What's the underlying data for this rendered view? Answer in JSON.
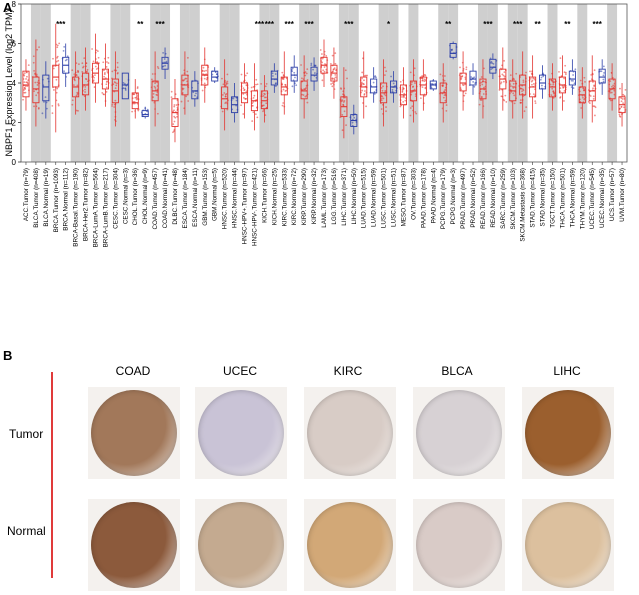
{
  "panel_a": {
    "letter": "A",
    "chart_data": {
      "type": "box",
      "title": "",
      "ylabel": "NBPF1 Expression Level (log2 TPM)",
      "ylim": [
        0,
        8
      ],
      "yticks": [
        "0",
        "2",
        "4",
        "6",
        "8"
      ],
      "colors": {
        "tumor": "#e3342f",
        "normal": "#2c3fa8",
        "shade": "#cfcfcf"
      },
      "categories": [
        {
          "label": "ACC.Tumor (n=79)",
          "group": "tumor",
          "median": 3.9,
          "q1": 3.3,
          "q3": 4.6,
          "lo": 2.6,
          "hi": 5.2,
          "sig": "",
          "shade": false
        },
        {
          "label": "BLCA.Tumor (n=408)",
          "group": "tumor",
          "median": 3.7,
          "q1": 3.0,
          "q3": 4.3,
          "lo": 1.8,
          "hi": 6.2,
          "sig": "",
          "shade": true
        },
        {
          "label": "BLCA.Normal (n=19)",
          "group": "normal",
          "median": 3.8,
          "q1": 3.1,
          "q3": 4.4,
          "lo": 2.2,
          "hi": 5.1,
          "sig": "",
          "shade": true
        },
        {
          "label": "BRCA.Tumor (n=1093)",
          "group": "tumor",
          "median": 4.3,
          "q1": 3.8,
          "q3": 4.9,
          "lo": 1.5,
          "hi": 7.0,
          "sig": "***",
          "shade": false
        },
        {
          "label": "BRCA.Normal (n=112)",
          "group": "normal",
          "median": 4.9,
          "q1": 4.5,
          "q3": 5.3,
          "lo": 3.8,
          "hi": 6.0,
          "sig": "",
          "shade": false
        },
        {
          "label": "BRCA-Basal.Tumor (n=190)",
          "group": "tumor",
          "median": 3.8,
          "q1": 3.3,
          "q3": 4.3,
          "lo": 2.4,
          "hi": 5.6,
          "sig": "",
          "shade": true
        },
        {
          "label": "BRCA-Her2.Tumor (n=82)",
          "group": "tumor",
          "median": 3.9,
          "q1": 3.4,
          "q3": 4.5,
          "lo": 2.6,
          "hi": 5.8,
          "sig": "",
          "shade": true
        },
        {
          "label": "BRCA-LumA.Tumor (n=564)",
          "group": "tumor",
          "median": 4.5,
          "q1": 4.0,
          "q3": 5.0,
          "lo": 3.0,
          "hi": 6.5,
          "sig": "",
          "shade": false
        },
        {
          "label": "BRCA-LumB.Tumor (n=217)",
          "group": "tumor",
          "median": 4.2,
          "q1": 3.7,
          "q3": 4.7,
          "lo": 2.8,
          "hi": 6.0,
          "sig": "",
          "shade": false
        },
        {
          "label": "CESC.Tumor (n=304)",
          "group": "tumor",
          "median": 3.6,
          "q1": 3.0,
          "q3": 4.2,
          "lo": 1.8,
          "hi": 5.6,
          "sig": "",
          "shade": true
        },
        {
          "label": "CESC.Normal (n=3)",
          "group": "normal",
          "median": 3.9,
          "q1": 3.2,
          "q3": 4.5,
          "lo": 3.2,
          "hi": 4.5,
          "sig": "",
          "shade": true
        },
        {
          "label": "CHOL.Tumor (n=36)",
          "group": "tumor",
          "median": 3.0,
          "q1": 2.7,
          "q3": 3.5,
          "lo": 2.2,
          "hi": 4.2,
          "sig": "**",
          "shade": false
        },
        {
          "label": "CHOL.Normal (n=9)",
          "group": "normal",
          "median": 2.4,
          "q1": 2.3,
          "q3": 2.6,
          "lo": 2.2,
          "hi": 2.8,
          "sig": "",
          "shade": false
        },
        {
          "label": "COAD.Tumor (n=457)",
          "group": "tumor",
          "median": 3.6,
          "q1": 3.1,
          "q3": 4.1,
          "lo": 1.8,
          "hi": 5.6,
          "sig": "***",
          "shade": true
        },
        {
          "label": "COAD.Normal (n=41)",
          "group": "normal",
          "median": 5.0,
          "q1": 4.7,
          "q3": 5.3,
          "lo": 4.2,
          "hi": 5.8,
          "sig": "",
          "shade": true
        },
        {
          "label": "DLBC.Tumor (n=48)",
          "group": "tumor",
          "median": 2.5,
          "q1": 1.8,
          "q3": 3.2,
          "lo": 1.0,
          "hi": 4.2,
          "sig": "",
          "shade": false
        },
        {
          "label": "ESCA.Tumor (n=184)",
          "group": "tumor",
          "median": 3.9,
          "q1": 3.4,
          "q3": 4.4,
          "lo": 2.4,
          "hi": 5.6,
          "sig": "",
          "shade": true
        },
        {
          "label": "ESCA.Normal (n=11)",
          "group": "normal",
          "median": 3.6,
          "q1": 3.2,
          "q3": 4.1,
          "lo": 2.8,
          "hi": 4.6,
          "sig": "",
          "shade": true
        },
        {
          "label": "GBM.Tumor (n=153)",
          "group": "tumor",
          "median": 4.4,
          "q1": 3.9,
          "q3": 4.9,
          "lo": 3.0,
          "hi": 5.8,
          "sig": "",
          "shade": false
        },
        {
          "label": "GBM.Normal (n=5)",
          "group": "normal",
          "median": 4.3,
          "q1": 4.1,
          "q3": 4.6,
          "lo": 4.0,
          "hi": 4.8,
          "sig": "",
          "shade": false
        },
        {
          "label": "HNSC.Tumor (n=520)",
          "group": "tumor",
          "median": 3.2,
          "q1": 2.7,
          "q3": 3.8,
          "lo": 1.6,
          "hi": 5.2,
          "sig": "",
          "shade": true
        },
        {
          "label": "HNSC.Normal (n=44)",
          "group": "normal",
          "median": 2.9,
          "q1": 2.5,
          "q3": 3.3,
          "lo": 2.0,
          "hi": 4.0,
          "sig": "",
          "shade": true
        },
        {
          "label": "HNSC-HPV+.Tumor (n=97)",
          "group": "tumor",
          "median": 3.5,
          "q1": 3.0,
          "q3": 4.0,
          "lo": 2.2,
          "hi": 5.0,
          "sig": "",
          "shade": false
        },
        {
          "label": "HNSC-HPV-.Tumor (n=421)",
          "group": "tumor",
          "median": 3.1,
          "q1": 2.6,
          "q3": 3.6,
          "lo": 1.6,
          "hi": 5.0,
          "sig": "***",
          "shade": false
        },
        {
          "label": "KICH.Tumor (n=66)",
          "group": "tumor",
          "median": 3.1,
          "q1": 2.7,
          "q3": 3.6,
          "lo": 2.0,
          "hi": 4.4,
          "sig": "***",
          "shade": true
        },
        {
          "label": "KICH.Normal (n=25)",
          "group": "normal",
          "median": 4.2,
          "q1": 3.9,
          "q3": 4.6,
          "lo": 3.5,
          "hi": 5.0,
          "sig": "",
          "shade": true
        },
        {
          "label": "KIRC.Tumor (n=533)",
          "group": "tumor",
          "median": 3.8,
          "q1": 3.4,
          "q3": 4.3,
          "lo": 2.4,
          "hi": 5.6,
          "sig": "***",
          "shade": false
        },
        {
          "label": "KIRC.Normal (n=72)",
          "group": "normal",
          "median": 4.4,
          "q1": 4.1,
          "q3": 4.8,
          "lo": 3.5,
          "hi": 5.4,
          "sig": "",
          "shade": false
        },
        {
          "label": "KIRP.Tumor (n=290)",
          "group": "tumor",
          "median": 3.6,
          "q1": 3.2,
          "q3": 4.1,
          "lo": 2.2,
          "hi": 5.4,
          "sig": "***",
          "shade": true
        },
        {
          "label": "KIRP.Normal (n=32)",
          "group": "normal",
          "median": 4.4,
          "q1": 4.1,
          "q3": 4.8,
          "lo": 3.6,
          "hi": 5.3,
          "sig": "",
          "shade": true
        },
        {
          "label": "LAML.Tumor (n=173)",
          "group": "tumor",
          "median": 4.9,
          "q1": 4.5,
          "q3": 5.3,
          "lo": 3.8,
          "hi": 6.2,
          "sig": "",
          "shade": false
        },
        {
          "label": "LGG.Tumor (n=516)",
          "group": "tumor",
          "median": 4.5,
          "q1": 4.1,
          "q3": 4.9,
          "lo": 3.2,
          "hi": 5.8,
          "sig": "",
          "shade": false
        },
        {
          "label": "LIHC.Tumor (n=371)",
          "group": "tumor",
          "median": 2.8,
          "q1": 2.3,
          "q3": 3.3,
          "lo": 1.2,
          "hi": 4.8,
          "sig": "***",
          "shade": true
        },
        {
          "label": "LIHC.Normal (n=50)",
          "group": "normal",
          "median": 2.1,
          "q1": 1.8,
          "q3": 2.4,
          "lo": 1.4,
          "hi": 2.9,
          "sig": "",
          "shade": true
        },
        {
          "label": "LUAD.Tumor (n=515)",
          "group": "tumor",
          "median": 3.8,
          "q1": 3.3,
          "q3": 4.3,
          "lo": 2.2,
          "hi": 5.6,
          "sig": "",
          "shade": false
        },
        {
          "label": "LUAD.Normal (n=59)",
          "group": "normal",
          "median": 3.8,
          "q1": 3.5,
          "q3": 4.2,
          "lo": 3.0,
          "hi": 4.8,
          "sig": "",
          "shade": false
        },
        {
          "label": "LUSC.Tumor (n=501)",
          "group": "tumor",
          "median": 3.5,
          "q1": 3.0,
          "q3": 4.0,
          "lo": 1.8,
          "hi": 5.2,
          "sig": "*",
          "shade": true
        },
        {
          "label": "LUSC.Normal (n=51)",
          "group": "normal",
          "median": 3.8,
          "q1": 3.5,
          "q3": 4.1,
          "lo": 3.0,
          "hi": 4.6,
          "sig": "",
          "shade": true
        },
        {
          "label": "MESO.Tumor (n=87)",
          "group": "tumor",
          "median": 3.4,
          "q1": 2.9,
          "q3": 3.9,
          "lo": 2.2,
          "hi": 4.8,
          "sig": "",
          "shade": false
        },
        {
          "label": "OV.Tumor (n=303)",
          "group": "tumor",
          "median": 3.6,
          "q1": 3.1,
          "q3": 4.1,
          "lo": 2.0,
          "hi": 5.2,
          "sig": "",
          "shade": true
        },
        {
          "label": "PAAD.Tumor (n=178)",
          "group": "tumor",
          "median": 3.9,
          "q1": 3.4,
          "q3": 4.3,
          "lo": 2.6,
          "hi": 5.2,
          "sig": "",
          "shade": false
        },
        {
          "label": "PAAD.Normal (n=4)",
          "group": "normal",
          "median": 3.9,
          "q1": 3.7,
          "q3": 4.1,
          "lo": 3.6,
          "hi": 4.2,
          "sig": "",
          "shade": false
        },
        {
          "label": "PCPG.Tumor (n=179)",
          "group": "tumor",
          "median": 3.5,
          "q1": 3.0,
          "q3": 4.0,
          "lo": 2.0,
          "hi": 5.0,
          "sig": "**",
          "shade": true
        },
        {
          "label": "PCPG.Normal (n=3)",
          "group": "normal",
          "median": 5.5,
          "q1": 5.3,
          "q3": 6.0,
          "lo": 5.2,
          "hi": 6.1,
          "sig": "",
          "shade": true
        },
        {
          "label": "PRAD.Tumor (n=497)",
          "group": "tumor",
          "median": 4.0,
          "q1": 3.6,
          "q3": 4.5,
          "lo": 2.6,
          "hi": 5.6,
          "sig": "",
          "shade": false
        },
        {
          "label": "PRAD.Normal (n=52)",
          "group": "normal",
          "median": 4.2,
          "q1": 3.9,
          "q3": 4.6,
          "lo": 3.4,
          "hi": 5.0,
          "sig": "",
          "shade": false
        },
        {
          "label": "READ.Tumor (n=166)",
          "group": "tumor",
          "median": 3.7,
          "q1": 3.2,
          "q3": 4.2,
          "lo": 2.2,
          "hi": 5.2,
          "sig": "***",
          "shade": true
        },
        {
          "label": "READ.Normal (n=10)",
          "group": "normal",
          "median": 4.8,
          "q1": 4.5,
          "q3": 5.2,
          "lo": 4.2,
          "hi": 5.5,
          "sig": "",
          "shade": true
        },
        {
          "label": "SARC.Tumor (n=259)",
          "group": "tumor",
          "median": 4.2,
          "q1": 3.7,
          "q3": 4.7,
          "lo": 2.6,
          "hi": 5.8,
          "sig": "",
          "shade": false
        },
        {
          "label": "SKCM.Tumor (n=103)",
          "group": "tumor",
          "median": 3.6,
          "q1": 3.1,
          "q3": 4.1,
          "lo": 2.2,
          "hi": 5.2,
          "sig": "***",
          "shade": true
        },
        {
          "label": "SKCM.Metastasis (n=368)",
          "group": "tumor",
          "median": 3.9,
          "q1": 3.4,
          "q3": 4.4,
          "lo": 2.2,
          "hi": 5.6,
          "sig": "",
          "shade": true
        },
        {
          "label": "STAD.Tumor (n=415)",
          "group": "tumor",
          "median": 3.8,
          "q1": 3.3,
          "q3": 4.3,
          "lo": 2.2,
          "hi": 5.4,
          "sig": "**",
          "shade": false
        },
        {
          "label": "STAD.Normal (n=35)",
          "group": "normal",
          "median": 4.0,
          "q1": 3.7,
          "q3": 4.4,
          "lo": 3.2,
          "hi": 4.9,
          "sig": "",
          "shade": false
        },
        {
          "label": "TGCT.Tumor (n=150)",
          "group": "tumor",
          "median": 3.8,
          "q1": 3.3,
          "q3": 4.2,
          "lo": 2.6,
          "hi": 5.0,
          "sig": "",
          "shade": true
        },
        {
          "label": "THCA.Tumor (n=501)",
          "group": "tumor",
          "median": 3.9,
          "q1": 3.5,
          "q3": 4.3,
          "lo": 2.6,
          "hi": 5.4,
          "sig": "**",
          "shade": false
        },
        {
          "label": "THCA.Normal (n=59)",
          "group": "normal",
          "median": 4.2,
          "q1": 3.9,
          "q3": 4.6,
          "lo": 3.4,
          "hi": 5.2,
          "sig": "",
          "shade": false
        },
        {
          "label": "THYM.Tumor (n=120)",
          "group": "tumor",
          "median": 3.4,
          "q1": 3.0,
          "q3": 3.8,
          "lo": 2.2,
          "hi": 4.8,
          "sig": "",
          "shade": true
        },
        {
          "label": "UCEC.Tumor (n=545)",
          "group": "tumor",
          "median": 3.6,
          "q1": 3.1,
          "q3": 4.1,
          "lo": 2.0,
          "hi": 5.4,
          "sig": "***",
          "shade": false
        },
        {
          "label": "UCEC.Normal (n=35)",
          "group": "normal",
          "median": 4.3,
          "q1": 4.0,
          "q3": 4.7,
          "lo": 3.4,
          "hi": 5.2,
          "sig": "",
          "shade": false
        },
        {
          "label": "UCS.Tumor (n=57)",
          "group": "tumor",
          "median": 3.7,
          "q1": 3.2,
          "q3": 4.2,
          "lo": 2.6,
          "hi": 5.0,
          "sig": "",
          "shade": true
        },
        {
          "label": "UVM.Tumor (n=80)",
          "group": "tumor",
          "median": 2.9,
          "q1": 2.5,
          "q3": 3.3,
          "lo": 1.8,
          "hi": 4.0,
          "sig": "",
          "shade": false
        }
      ]
    }
  },
  "panel_b": {
    "letter": "B",
    "columns": [
      "COAD",
      "UCEC",
      "KIRC",
      "BLCA",
      "LIHC"
    ],
    "rows": [
      "Tumor",
      "Normal"
    ],
    "stain_colors": {
      "COAD": [
        "#a2785a",
        "#8c5a3c"
      ],
      "UCEC": [
        "#c9c3d6",
        "#c4aa90"
      ],
      "KIRC": [
        "#d8ccc6",
        "#d2a877"
      ],
      "BLCA": [
        "#d7d1d4",
        "#d9cbc7"
      ],
      "LIHC": [
        "#9b5f2e",
        "#dcc09e"
      ]
    }
  }
}
